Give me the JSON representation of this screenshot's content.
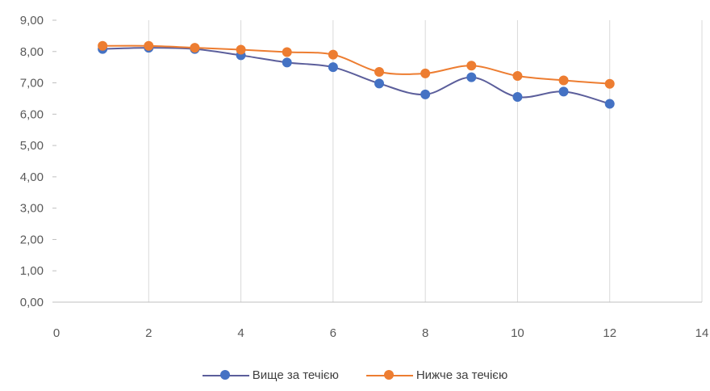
{
  "chart_data": {
    "type": "line",
    "xlim": [
      0,
      14
    ],
    "ylim": [
      0,
      9
    ],
    "x_ticks": [
      "0",
      "2",
      "4",
      "6",
      "8",
      "10",
      "12",
      "14"
    ],
    "y_ticks": [
      "0,00",
      "1,00",
      "2,00",
      "3,00",
      "4,00",
      "5,00",
      "6,00",
      "7,00",
      "8,00",
      "9,00"
    ],
    "grid": "vertical",
    "legend_position": "bottom",
    "smooth": true,
    "series": [
      {
        "name": "Вище за течією",
        "color": "#4472C4",
        "line_color": "#5B5E9B",
        "x": [
          1,
          2,
          3,
          4,
          5,
          6,
          7,
          8,
          9,
          10,
          11,
          12
        ],
        "y": [
          8.08,
          8.12,
          8.08,
          7.88,
          7.65,
          7.5,
          6.98,
          6.63,
          7.18,
          6.55,
          6.72,
          6.33
        ]
      },
      {
        "name": "Нижче за течією",
        "color": "#ED7D31",
        "line_color": "#ED7D31",
        "x": [
          1,
          2,
          3,
          4,
          5,
          6,
          7,
          8,
          9,
          10,
          11,
          12
        ],
        "y": [
          8.18,
          8.18,
          8.12,
          8.06,
          7.98,
          7.9,
          7.35,
          7.3,
          7.55,
          7.22,
          7.08,
          6.97
        ]
      }
    ]
  }
}
